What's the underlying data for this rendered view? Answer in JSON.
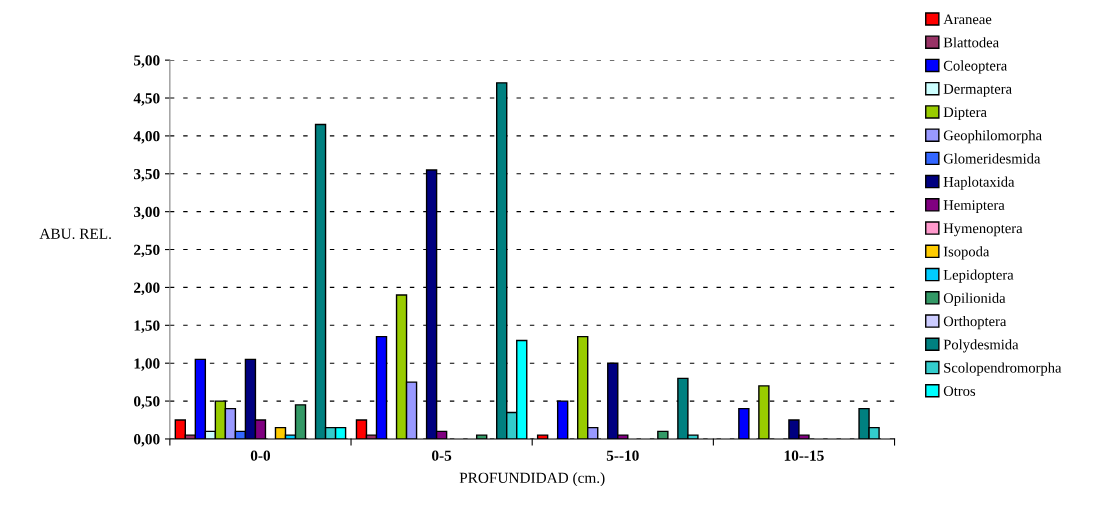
{
  "chart_data": {
    "type": "bar",
    "xlabel": "PROFUNDIDAD (cm.)",
    "ylabel": "ABU. REL.",
    "categories": [
      "0-0",
      "0-5",
      "5--10",
      "10--15"
    ],
    "series": [
      {
        "name": "Araneae",
        "color": "#ff0000",
        "values": [
          0.25,
          0.25,
          0.05,
          null
        ]
      },
      {
        "name": "Blattodea",
        "color": "#993366",
        "values": [
          0.05,
          0.05,
          null,
          null
        ]
      },
      {
        "name": "Coleoptera",
        "color": "#0000ff",
        "values": [
          1.05,
          1.35,
          0.5,
          0.4
        ]
      },
      {
        "name": "Dermaptera",
        "color": "#ccffff",
        "values": [
          0.1,
          null,
          null,
          null
        ]
      },
      {
        "name": "Diptera",
        "color": "#99cc00",
        "values": [
          0.5,
          1.9,
          1.35,
          0.7
        ]
      },
      {
        "name": "Geophilomorpha",
        "color": "#9999ff",
        "values": [
          0.4,
          0.75,
          0.15,
          null
        ]
      },
      {
        "name": "Glomeridesmida",
        "color": "#3366ff",
        "values": [
          0.1,
          null,
          null,
          null
        ]
      },
      {
        "name": "Haplotaxida",
        "color": "#000080",
        "values": [
          1.05,
          3.55,
          1.0,
          0.25
        ]
      },
      {
        "name": "Hemiptera",
        "color": "#800080",
        "values": [
          0.25,
          0.1,
          0.05,
          0.05
        ]
      },
      {
        "name": "Hymenoptera",
        "color": "#ff99cc",
        "values": [
          null,
          null,
          null,
          null
        ]
      },
      {
        "name": "Isopoda",
        "color": "#ffcc00",
        "values": [
          0.15,
          null,
          null,
          null
        ]
      },
      {
        "name": "Lepidoptera",
        "color": "#00ccff",
        "values": [
          0.05,
          null,
          null,
          null
        ]
      },
      {
        "name": "Opilionida",
        "color": "#339966",
        "values": [
          0.45,
          0.05,
          0.1,
          null
        ]
      },
      {
        "name": "Orthoptera",
        "color": "#ccccff",
        "values": [
          null,
          null,
          null,
          null
        ]
      },
      {
        "name": "Polydesmida",
        "color": "#008080",
        "values": [
          4.15,
          4.7,
          0.8,
          0.4
        ]
      },
      {
        "name": "Scolopendromorpha",
        "color": "#33cccc",
        "values": [
          0.15,
          0.35,
          0.05,
          0.15
        ]
      },
      {
        "name": "Otros",
        "color": "#00ffff",
        "values": [
          0.15,
          1.3,
          null,
          null
        ]
      }
    ],
    "ylim": [
      0,
      5
    ],
    "yticks": [
      {
        "value": 0,
        "label": "0,00"
      },
      {
        "value": 0.5,
        "label": "0,50"
      },
      {
        "value": 1,
        "label": "1,00"
      },
      {
        "value": 1.5,
        "label": "1,50"
      },
      {
        "value": 2,
        "label": "2,00"
      },
      {
        "value": 2.5,
        "label": "2,50"
      },
      {
        "value": 3,
        "label": "3,00"
      },
      {
        "value": 3.5,
        "label": "3,50"
      },
      {
        "value": 4,
        "label": "4,00"
      },
      {
        "value": 4.5,
        "label": "4,50"
      },
      {
        "value": 5,
        "label": "5,00"
      }
    ],
    "grid": "y",
    "legend": "right"
  }
}
